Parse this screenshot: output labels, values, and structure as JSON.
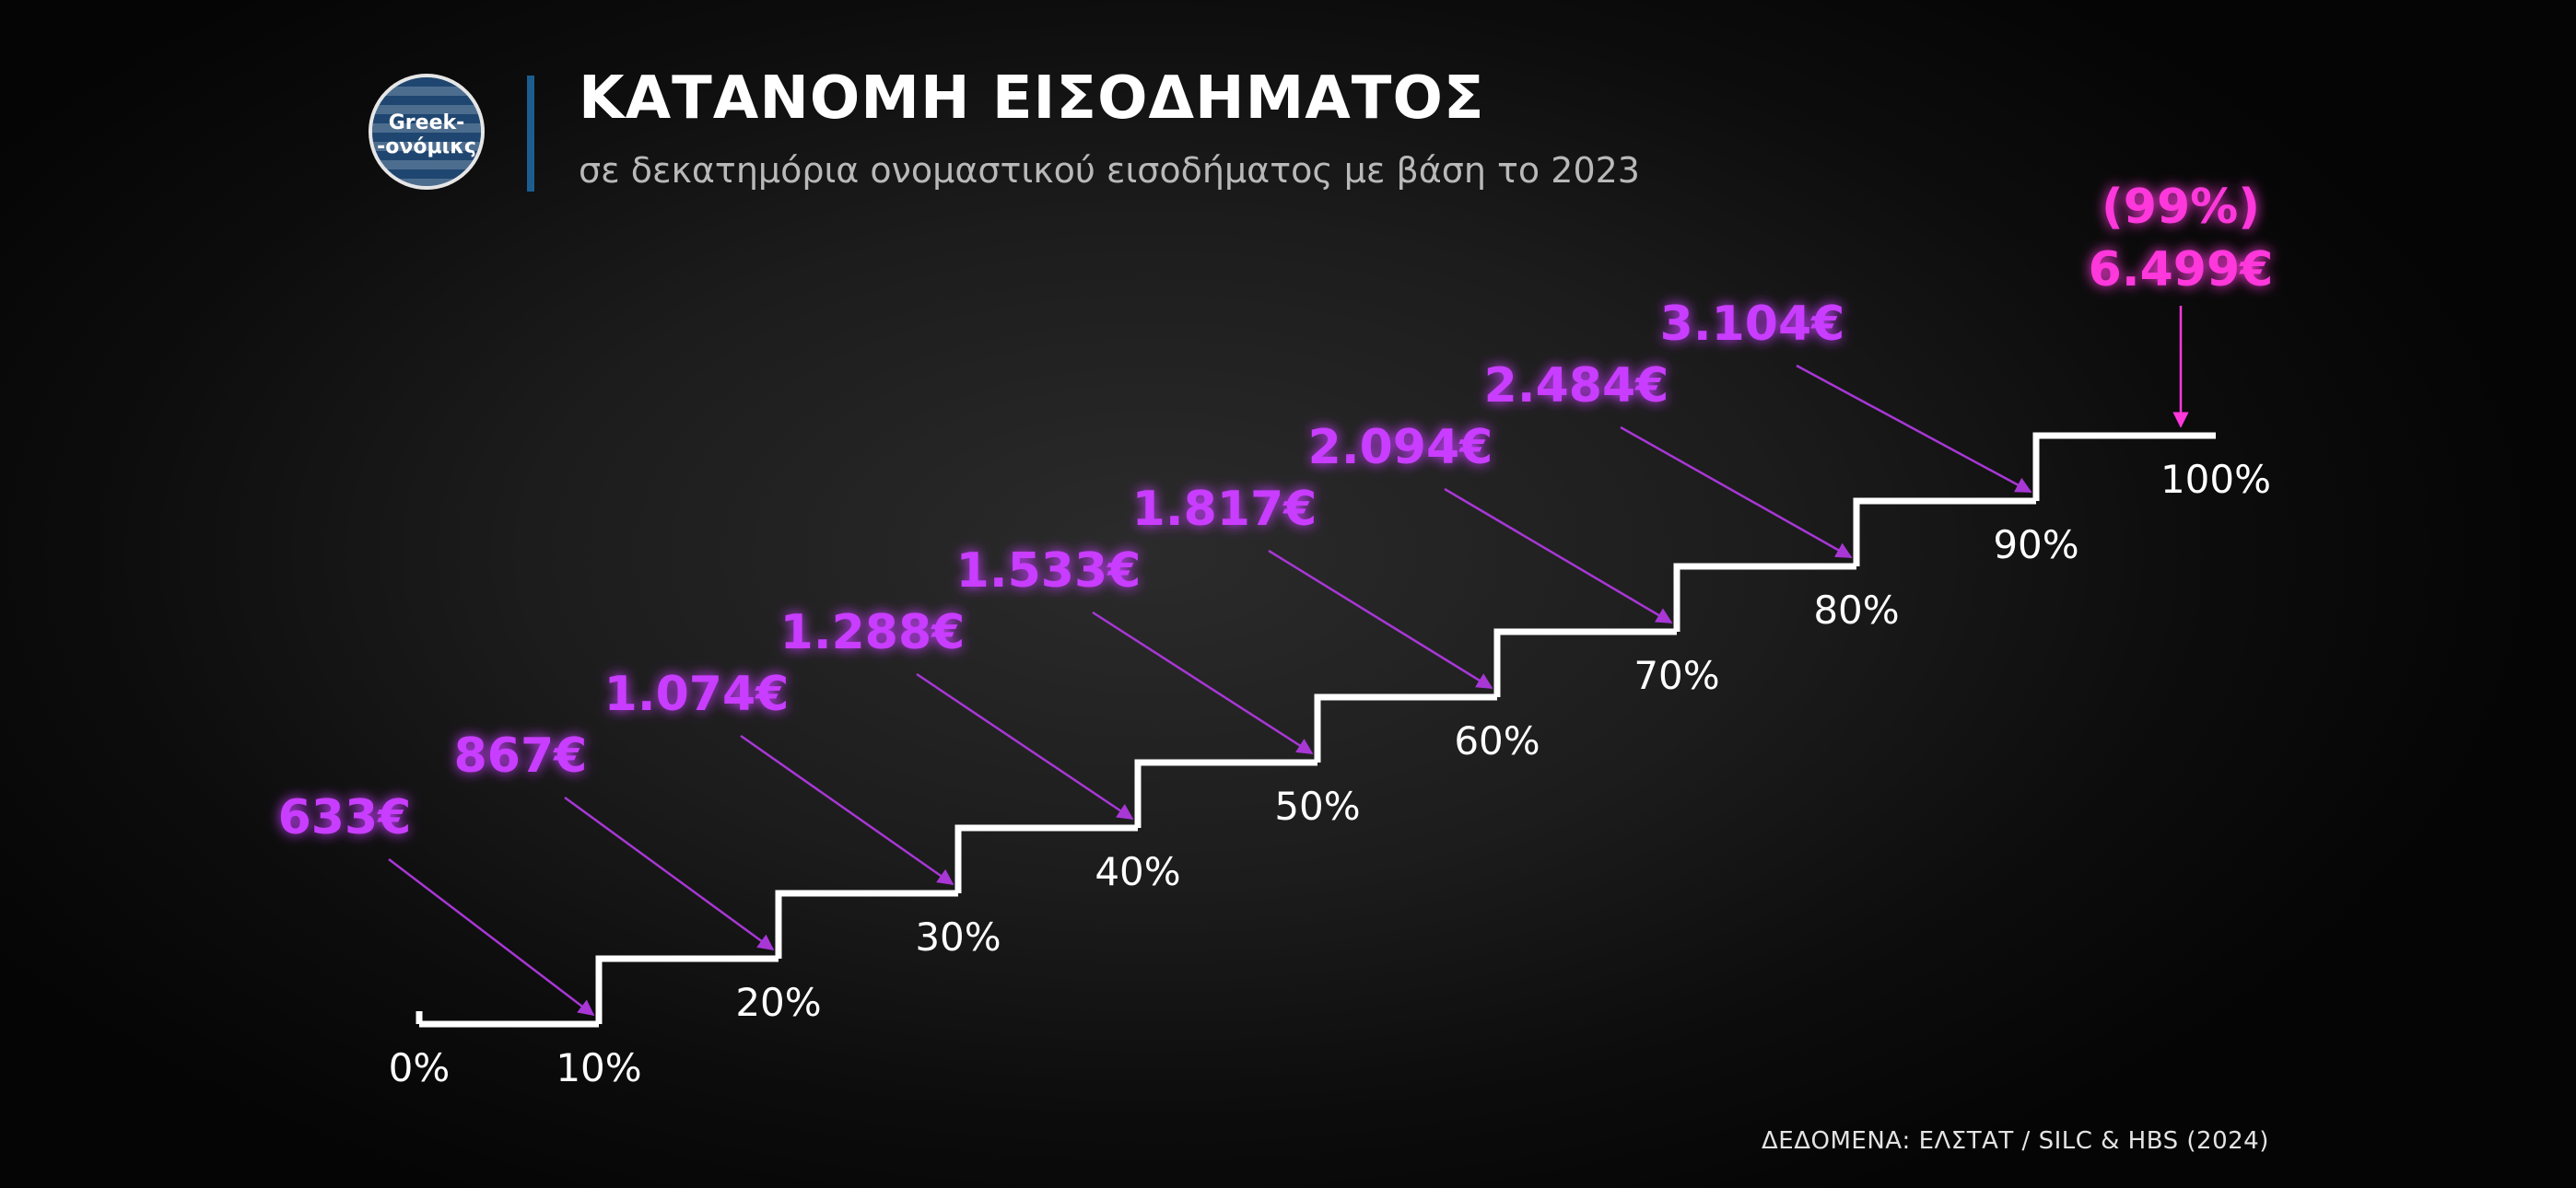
{
  "brand": {
    "line1": "Greek-",
    "line2": "-ονόμικς"
  },
  "header": {
    "title": "ΚΑΤΑΝΟΜΗ ΕΙΣΟΔΗΜΑΤΟΣ",
    "subtitle": "σε δεκατημόρια ονομαστικού εισοδήματος με βάση το 2023"
  },
  "source": "ΔΕΔΟΜΕΝΑ: ΕΛΣΤΑΤ / SILC & HBS  (2024)",
  "colors": {
    "step_line": "#ffffff",
    "value_label": "#c83cff",
    "top_label": "#ff38dc",
    "arrow": "#a837d6",
    "title_bar": "#1c5d8f"
  },
  "chart_data": {
    "type": "bar",
    "title": "ΚΑΤΑΝΟΜΗ ΕΙΣΟΔΗΜΑΤΟΣ",
    "subtitle": "σε δεκατημόρια ονομαστικού εισοδήματος με βάση το 2023",
    "xlabel": "",
    "ylabel": "",
    "tick_labels": [
      "0%",
      "10%",
      "20%",
      "30%",
      "40%",
      "50%",
      "60%",
      "70%",
      "80%",
      "90%",
      "100%"
    ],
    "categories": [
      "10%",
      "20%",
      "30%",
      "40%",
      "50%",
      "60%",
      "70%",
      "80%",
      "90%",
      "100%"
    ],
    "values": [
      633,
      867,
      1074,
      1288,
      1533,
      1817,
      2094,
      2484,
      3104,
      6499
    ],
    "value_labels": [
      "633€",
      "867€",
      "1.074€",
      "1.288€",
      "1.533€",
      "1.817€",
      "2.094€",
      "2.484€",
      "3.104€",
      "6.499€"
    ],
    "top_annotation": "(99%)",
    "grid": false
  }
}
